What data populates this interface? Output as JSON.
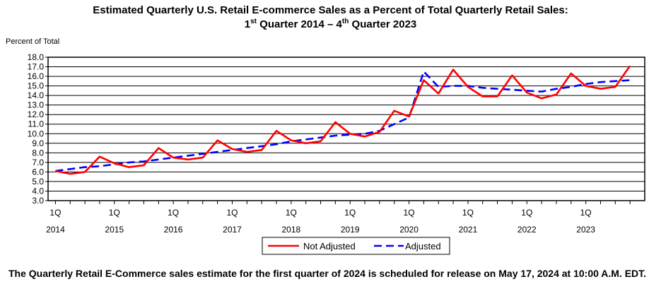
{
  "title": {
    "line1": "Estimated Quarterly U.S. Retail E-commerce Sales as a Percent of Total Quarterly Retail Sales:",
    "line2_part1": "1",
    "line2_sup1": "st",
    "line2_part2": " Quarter 2014 – 4",
    "line2_sup2": "th",
    "line2_part3": " Quarter 2023"
  },
  "footnote": "The Quarterly Retail E-Commerce sales estimate for the first quarter of 2024 is scheduled for release on May 17, 2024 at 10:00 A.M. EDT.",
  "chart_data": {
    "type": "line",
    "ylabel": "Percent of Total",
    "ylim": [
      3.0,
      18.0
    ],
    "ytick_step": 1.0,
    "grid": true,
    "legend_placement": "bottom-center",
    "x_tick_labels": [
      {
        "q": "1Q",
        "year": "2014"
      },
      {
        "q": "1Q",
        "year": "2015"
      },
      {
        "q": "1Q",
        "year": "2016"
      },
      {
        "q": "1Q",
        "year": "2017"
      },
      {
        "q": "1Q",
        "year": "2018"
      },
      {
        "q": "1Q",
        "year": "2019"
      },
      {
        "q": "1Q",
        "year": "2020"
      },
      {
        "q": "1Q",
        "year": "2021"
      },
      {
        "q": "1Q",
        "year": "2022"
      },
      {
        "q": "1Q",
        "year": "2023"
      }
    ],
    "x": [
      "2014Q1",
      "2014Q2",
      "2014Q3",
      "2014Q4",
      "2015Q1",
      "2015Q2",
      "2015Q3",
      "2015Q4",
      "2016Q1",
      "2016Q2",
      "2016Q3",
      "2016Q4",
      "2017Q1",
      "2017Q2",
      "2017Q3",
      "2017Q4",
      "2018Q1",
      "2018Q2",
      "2018Q3",
      "2018Q4",
      "2019Q1",
      "2019Q2",
      "2019Q3",
      "2019Q4",
      "2020Q1",
      "2020Q2",
      "2020Q3",
      "2020Q4",
      "2021Q1",
      "2021Q2",
      "2021Q3",
      "2021Q4",
      "2022Q1",
      "2022Q2",
      "2022Q3",
      "2022Q4",
      "2023Q1",
      "2023Q2",
      "2023Q3",
      "2023Q4"
    ],
    "series": [
      {
        "name": "Not Adjusted",
        "color": "#ff0000",
        "style": "solid",
        "values": [
          6.1,
          5.8,
          6.0,
          7.6,
          6.9,
          6.5,
          6.7,
          8.5,
          7.5,
          7.3,
          7.5,
          9.3,
          8.4,
          8.1,
          8.3,
          10.3,
          9.3,
          9.0,
          9.2,
          11.2,
          10.0,
          9.7,
          10.2,
          12.4,
          11.8,
          15.6,
          14.2,
          16.7,
          14.9,
          13.9,
          13.9,
          16.1,
          14.3,
          13.7,
          14.1,
          16.3,
          15.0,
          14.7,
          14.9,
          17.1
        ]
      },
      {
        "name": "Adjusted",
        "color": "#0000ff",
        "style": "dashed",
        "values": [
          6.1,
          6.3,
          6.5,
          6.6,
          6.8,
          7.0,
          7.1,
          7.3,
          7.5,
          7.7,
          7.9,
          8.1,
          8.3,
          8.5,
          8.7,
          8.9,
          9.2,
          9.4,
          9.6,
          9.8,
          9.9,
          10.0,
          10.3,
          11.0,
          11.7,
          16.5,
          14.9,
          15.0,
          15.0,
          14.8,
          14.7,
          14.6,
          14.5,
          14.4,
          14.7,
          14.9,
          15.2,
          15.4,
          15.5,
          15.6
        ]
      }
    ]
  }
}
